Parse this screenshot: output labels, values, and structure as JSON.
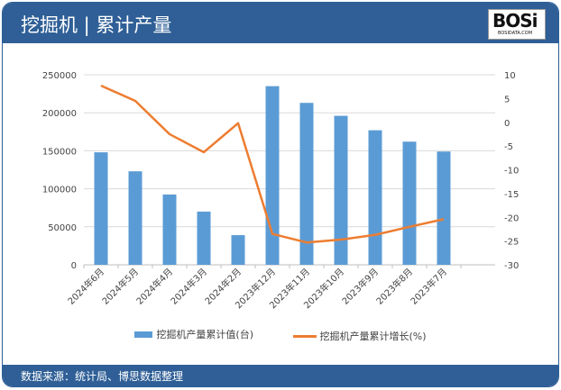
{
  "header": {
    "title": "挖掘机 | 累计产量",
    "logo": "BOSi",
    "logo_sub": "BOSIDATA.COM"
  },
  "footer": {
    "source": "数据来源：统计局、博思数据整理"
  },
  "colors": {
    "bar": "#5b9bd5",
    "line": "#ed7d31",
    "header": "#2f5f96"
  },
  "chart_data": {
    "type": "bar+line",
    "categories": [
      "2024年6月",
      "2024年5月",
      "2024年4月",
      "2024年3月",
      "2024年2月",
      "2023年12月",
      "2023年11月",
      "2023年10月",
      "2023年9月",
      "2023年8月",
      "2023年7月"
    ],
    "series": [
      {
        "name": "挖掘机产量累计值(台)",
        "type": "bar",
        "axis": "left",
        "values": [
          148000,
          123000,
          92500,
          70000,
          39000,
          235000,
          213000,
          196000,
          177000,
          162000,
          149000
        ]
      },
      {
        "name": "挖掘机产量累计增长(%)",
        "type": "line",
        "axis": "right",
        "values": [
          7.7,
          4.5,
          -2.5,
          -6.3,
          -0.2,
          -23.5,
          -25.3,
          -24.7,
          -23.7,
          -22.0,
          -20.4
        ]
      }
    ],
    "y_left": {
      "min": 0,
      "max": 250000,
      "ticks": [
        0,
        50000,
        100000,
        150000,
        200000,
        250000
      ]
    },
    "y_right": {
      "min": -30,
      "max": 10,
      "ticks": [
        10,
        5,
        0,
        -5,
        -10,
        -15,
        -20,
        -25,
        -30
      ]
    },
    "grid": true,
    "legend": "bottom"
  }
}
